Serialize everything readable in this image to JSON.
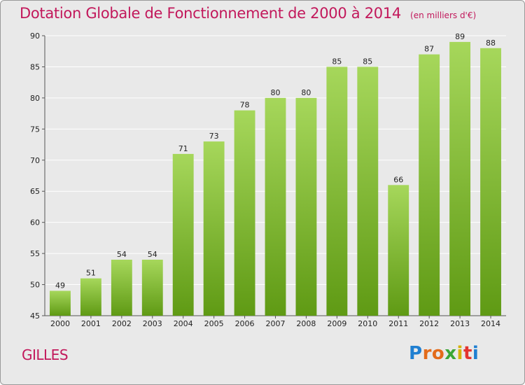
{
  "title": "Dotation Globale de Fonctionnement de 2000 à 2014",
  "subtitle": "(en milliers d'€)",
  "commune": "GILLES",
  "logo": {
    "letters": [
      "P",
      "r",
      "o",
      "x",
      "i",
      "t",
      "i"
    ],
    "colors": [
      "#1f7fd1",
      "#e36b1a",
      "#e36b1a",
      "#3aa635",
      "#d6b200",
      "#e3342f",
      "#1f7fd1"
    ]
  },
  "colors": {
    "bar_light": "#a6d75b",
    "bar_dark": "#5f9a14",
    "title": "#c2185b",
    "background": "#e9e9e9",
    "grid": "#ffffff"
  },
  "chart_data": {
    "type": "bar",
    "categories": [
      "2000",
      "2001",
      "2002",
      "2003",
      "2004",
      "2005",
      "2006",
      "2007",
      "2008",
      "2009",
      "2010",
      "2011",
      "2012",
      "2013",
      "2014"
    ],
    "values": [
      49,
      51,
      54,
      54,
      71,
      73,
      78,
      80,
      80,
      85,
      85,
      66,
      87,
      89,
      88
    ],
    "ylim": [
      45,
      90
    ],
    "yticks": [
      45,
      50,
      55,
      60,
      65,
      70,
      75,
      80,
      85,
      90
    ],
    "grid": true,
    "legend": "none"
  }
}
